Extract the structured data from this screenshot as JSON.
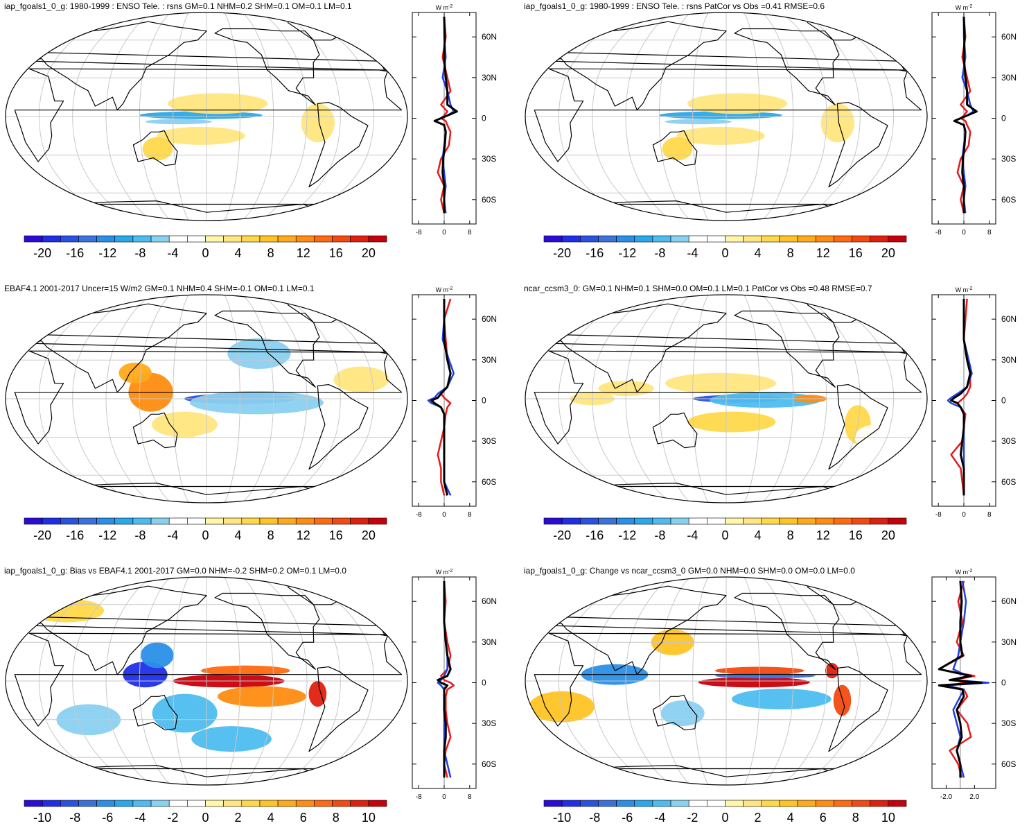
{
  "figure": {
    "zonal_axis": {
      "unit_base": "W m",
      "unit_exp": "-2",
      "lat_ticks": [
        "60N",
        "30N",
        "0",
        "30S",
        "60S"
      ],
      "lat_values": [
        60,
        30,
        0,
        -30,
        -60
      ],
      "series_colors": {
        "model": "#e41a1c",
        "obs": "#1f3fe0",
        "reference": "#000000"
      }
    },
    "colormap": [
      "#2a0bd8",
      "#1f2ee8",
      "#2a52e0",
      "#3c72dc",
      "#2a8fe8",
      "#27a9ec",
      "#4dbdf0",
      "#8ad0f0",
      "#ffffff",
      "#ffffff",
      "#fff6a8",
      "#ffe680",
      "#ffd84a",
      "#ffc424",
      "#ffaa1a",
      "#ff8c10",
      "#ff6a10",
      "#f24a10",
      "#e0200e",
      "#c8000c"
    ],
    "colors": {
      "land": "#000000",
      "grid": "#c8c8c8"
    }
  },
  "chart_data": [
    {
      "type": "heatmap",
      "id": "p1",
      "title": "iap_fgoals1_0_g: 1980-1999 : ENSO Tele. : rsns GM=0.1 NHM=0.2 SHM=0.1 OM=0.1 LM=0.1",
      "colorbar_labels": [
        "-20",
        "-16",
        "-12",
        "-8",
        "-4",
        "0",
        "4",
        "8",
        "12",
        "16",
        "20"
      ],
      "zonal_ticks": [
        "-8",
        "0",
        "8"
      ],
      "zonal_xlim": [
        -10,
        10
      ],
      "blobs": [
        {
          "lon": 175,
          "lat": 1,
          "rlon": 55,
          "rlat": 3,
          "v": -9
        },
        {
          "lon": 155,
          "lat": -4,
          "rlon": 30,
          "rlat": 2,
          "v": -6
        },
        {
          "lon": 190,
          "lat": 10,
          "rlon": 45,
          "rlat": 8,
          "v": 3
        },
        {
          "lon": 175,
          "lat": -15,
          "rlon": 40,
          "rlat": 7,
          "v": 3
        },
        {
          "lon": 135,
          "lat": -25,
          "rlon": 14,
          "rlat": 9,
          "v": 4
        },
        {
          "lon": 280,
          "lat": -5,
          "rlon": 15,
          "rlat": 15,
          "v": 3
        },
        {
          "lon": 295,
          "lat": -35,
          "rlon": 8,
          "rlat": 12,
          "v": -4
        },
        {
          "lon": 40,
          "lat": 0,
          "rlon": 15,
          "rlat": 5,
          "v": -3
        },
        {
          "lon": 255,
          "lat": 20,
          "rlon": 20,
          "rlat": 7,
          "v": -3
        }
      ],
      "zonal": {
        "lat": [
          75,
          60,
          45,
          30,
          20,
          10,
          5,
          2,
          0,
          -2,
          -5,
          -10,
          -20,
          -30,
          -40,
          -50,
          -60,
          -70
        ],
        "model": [
          0,
          0.5,
          -0.5,
          1,
          2,
          -1,
          1,
          0,
          -1,
          0.5,
          1,
          2,
          1.5,
          -1,
          -2,
          0,
          -1,
          0
        ],
        "obs": [
          0,
          0,
          0.5,
          -0.5,
          1,
          2,
          3,
          1,
          -1,
          -3,
          0,
          0.5,
          0,
          -0.5,
          0,
          0.5,
          0,
          0.5
        ],
        "reference": [
          0,
          0.2,
          0,
          0.5,
          1,
          1,
          4,
          1,
          -1,
          -3,
          0,
          0.5,
          0.2,
          -0.3,
          -0.5,
          0,
          0,
          0
        ]
      }
    },
    {
      "type": "heatmap",
      "id": "p2",
      "title": "iap_fgoals1_0_g: 1980-1999 : ENSO Tele. : rsns PatCor vs Obs =0.41 RMSE=0.6",
      "colorbar_labels": [
        "-20",
        "-16",
        "-12",
        "-8",
        "-4",
        "0",
        "4",
        "8",
        "12",
        "16",
        "20"
      ],
      "zonal_ticks": [
        "-8",
        "0",
        "8"
      ],
      "zonal_xlim": [
        -10,
        10
      ],
      "blobs": [
        {
          "lon": 175,
          "lat": 1,
          "rlon": 55,
          "rlat": 3,
          "v": -9
        },
        {
          "lon": 155,
          "lat": -4,
          "rlon": 30,
          "rlat": 2,
          "v": -6
        },
        {
          "lon": 190,
          "lat": 10,
          "rlon": 45,
          "rlat": 8,
          "v": 3
        },
        {
          "lon": 175,
          "lat": -15,
          "rlon": 40,
          "rlat": 7,
          "v": 3
        },
        {
          "lon": 135,
          "lat": -25,
          "rlon": 14,
          "rlat": 9,
          "v": 4
        },
        {
          "lon": 280,
          "lat": -5,
          "rlon": 15,
          "rlat": 15,
          "v": 3
        },
        {
          "lon": 295,
          "lat": -35,
          "rlon": 8,
          "rlat": 12,
          "v": -4
        },
        {
          "lon": 40,
          "lat": 0,
          "rlon": 15,
          "rlat": 5,
          "v": -3
        },
        {
          "lon": 255,
          "lat": 20,
          "rlon": 20,
          "rlat": 7,
          "v": -3
        }
      ],
      "zonal": {
        "lat": [
          75,
          60,
          45,
          30,
          20,
          10,
          5,
          2,
          0,
          -2,
          -5,
          -10,
          -20,
          -30,
          -40,
          -50,
          -60,
          -70
        ],
        "model": [
          0,
          0.5,
          -0.5,
          1,
          2,
          -1,
          1,
          0,
          -1,
          0.5,
          1,
          2,
          1.5,
          -1,
          -2,
          0,
          -1,
          0
        ],
        "obs": [
          0,
          0,
          0.5,
          -0.5,
          1,
          2,
          3,
          1,
          -1,
          -3,
          0,
          0.5,
          0,
          -0.5,
          0,
          0.5,
          0,
          0.5
        ],
        "reference": [
          0,
          0.2,
          0,
          0.5,
          1,
          1,
          4,
          1,
          -1,
          -3,
          0,
          0.5,
          0.2,
          -0.3,
          -0.5,
          0,
          0,
          0
        ]
      }
    },
    {
      "type": "heatmap",
      "id": "p3",
      "title": "EBAF4.1 2001-2017 Uncer=15 W/m2 GM=0.1 NHM=0.4 SHM=-0.1 OM=0.1 LM=0.1",
      "colorbar_labels": [
        "-20",
        "-16",
        "-12",
        "-8",
        "-4",
        "0",
        "4",
        "8",
        "12",
        "16",
        "20"
      ],
      "zonal_ticks": [
        "-8",
        "0",
        "8"
      ],
      "zonal_xlim": [
        -10,
        10
      ],
      "blobs": [
        {
          "lon": 210,
          "lat": 0,
          "rlon": 50,
          "rlat": 4,
          "v": -16
        },
        {
          "lon": 225,
          "lat": -3,
          "rlon": 60,
          "rlat": 9,
          "v": -6
        },
        {
          "lon": 130,
          "lat": 5,
          "rlon": 20,
          "rlat": 15,
          "v": 10
        },
        {
          "lon": 115,
          "lat": 20,
          "rlon": 15,
          "rlat": 8,
          "v": 8
        },
        {
          "lon": 160,
          "lat": -20,
          "rlon": 30,
          "rlat": 10,
          "v": 3
        },
        {
          "lon": 230,
          "lat": 35,
          "rlon": 30,
          "rlat": 12,
          "v": -5
        },
        {
          "lon": 210,
          "lat": -35,
          "rlon": 50,
          "rlat": 10,
          "v": -4
        },
        {
          "lon": 30,
          "lat": 45,
          "rlon": 60,
          "rlat": 12,
          "v": -3
        },
        {
          "lon": 320,
          "lat": 15,
          "rlon": 25,
          "rlat": 10,
          "v": 3
        },
        {
          "lon": 90,
          "lat": -40,
          "rlon": 40,
          "rlat": 8,
          "v": -3
        }
      ],
      "zonal": {
        "lat": [
          75,
          60,
          45,
          30,
          20,
          10,
          5,
          2,
          0,
          -2,
          -5,
          -10,
          -20,
          -30,
          -40,
          -50,
          -60,
          -70
        ],
        "model": [
          2,
          0,
          0.5,
          1,
          2,
          1,
          -1,
          0,
          1,
          2,
          1,
          0.5,
          0,
          -1,
          -2,
          -1,
          -1,
          0
        ],
        "obs": [
          0,
          0,
          -0.5,
          1.5,
          3,
          1,
          -2,
          -3,
          -5,
          -4,
          -1,
          0,
          0,
          0,
          0,
          0,
          0,
          2
        ],
        "reference": [
          0,
          0,
          0,
          1,
          2,
          1,
          -1,
          -2,
          -4,
          -3,
          -1,
          0,
          0,
          0,
          0,
          0,
          0,
          1
        ]
      }
    },
    {
      "type": "heatmap",
      "id": "p4",
      "title": "ncar_ccsm3_0: GM=0.1 NHM=0.1 SHM=0.0 OM=0.1 LM=0.1 PatCor vs Obs =0.48 RMSE=0.7",
      "colorbar_labels": [
        "-20",
        "-16",
        "-12",
        "-8",
        "-4",
        "0",
        "4",
        "8",
        "12",
        "16",
        "20"
      ],
      "zonal_ticks": [
        "-8",
        "0",
        "8"
      ],
      "zonal_xlim": [
        -10,
        10
      ],
      "blobs": [
        {
          "lon": 190,
          "lat": 0,
          "rlon": 40,
          "rlat": 3,
          "v": -16
        },
        {
          "lon": 215,
          "lat": -1,
          "rlon": 50,
          "rlat": 6,
          "v": -7
        },
        {
          "lon": 255,
          "lat": 0,
          "rlon": 15,
          "rlat": 3,
          "v": 10
        },
        {
          "lon": 175,
          "lat": 12,
          "rlon": 50,
          "rlat": 8,
          "v": 3
        },
        {
          "lon": 185,
          "lat": -18,
          "rlon": 40,
          "rlat": 8,
          "v": 4
        },
        {
          "lon": 90,
          "lat": 8,
          "rlon": 25,
          "rlat": 6,
          "v": 3
        },
        {
          "lon": 300,
          "lat": -20,
          "rlon": 12,
          "rlat": 15,
          "v": 4
        },
        {
          "lon": 60,
          "lat": 0,
          "rlon": 20,
          "rlat": 5,
          "v": 3
        },
        {
          "lon": 320,
          "lat": -30,
          "rlon": 20,
          "rlat": 10,
          "v": -3
        }
      ],
      "zonal": {
        "lat": [
          75,
          60,
          45,
          30,
          20,
          10,
          5,
          2,
          0,
          -2,
          -5,
          -10,
          -20,
          -30,
          -40,
          -50,
          -60,
          -70
        ],
        "model": [
          1,
          0.5,
          0,
          1,
          2,
          2,
          1,
          0,
          -1,
          -2,
          -1,
          0.5,
          0,
          -0.5,
          -4,
          -1,
          -0.5,
          0
        ],
        "obs": [
          0,
          0,
          0,
          1.5,
          2.5,
          1,
          -2,
          -4,
          -5,
          -4,
          -1,
          0,
          0,
          0,
          0,
          0,
          0,
          0
        ],
        "reference": [
          0,
          0,
          0,
          1,
          2,
          1,
          -1,
          -3,
          -4,
          -2,
          -1,
          0,
          0,
          -0.5,
          -1,
          0,
          0,
          0
        ]
      }
    },
    {
      "type": "heatmap",
      "id": "p5",
      "title": "iap_fgoals1_0_g: Bias vs EBAF4.1 2001-2017 GM=0.0 NHM=-0.2 SHM=0.2 OM=0.1 LM=0.0",
      "colorbar_labels": [
        "-10",
        "-8",
        "-6",
        "-4",
        "-2",
        "0",
        "2",
        "4",
        "6",
        "8",
        "10"
      ],
      "zonal_ticks": [
        "-8",
        "0",
        "8"
      ],
      "zonal_xlim": [
        -10,
        10
      ],
      "blobs": [
        {
          "lon": 200,
          "lat": 0,
          "rlon": 50,
          "rlat": 5,
          "v": 9
        },
        {
          "lon": 215,
          "lat": 8,
          "rlon": 40,
          "rlat": 4,
          "v": 6
        },
        {
          "lon": 230,
          "lat": -12,
          "rlon": 40,
          "rlat": 8,
          "v": 5
        },
        {
          "lon": 125,
          "lat": 5,
          "rlon": 20,
          "rlat": 10,
          "v": -9
        },
        {
          "lon": 135,
          "lat": 20,
          "rlon": 15,
          "rlat": 10,
          "v": -6
        },
        {
          "lon": 160,
          "lat": -25,
          "rlon": 30,
          "rlat": 15,
          "v": -4
        },
        {
          "lon": 205,
          "lat": -45,
          "rlon": 40,
          "rlat": 10,
          "v": -4
        },
        {
          "lon": 280,
          "lat": -10,
          "rlon": 8,
          "rlat": 10,
          "v": 8
        },
        {
          "lon": 30,
          "lat": 55,
          "rlon": 40,
          "rlat": 10,
          "v": 2
        },
        {
          "lon": 70,
          "lat": -30,
          "rlon": 30,
          "rlat": 12,
          "v": -3
        }
      ],
      "zonal": {
        "lat": [
          75,
          60,
          45,
          30,
          20,
          10,
          5,
          2,
          0,
          -2,
          -5,
          -10,
          -20,
          -30,
          -40,
          -50,
          -60,
          -70
        ],
        "model": [
          0,
          0.5,
          0,
          1,
          2,
          1,
          -1,
          0,
          2,
          3,
          1,
          0.5,
          0.5,
          1,
          2,
          0.5,
          0,
          1
        ],
        "obs": [
          0,
          0,
          0,
          0.5,
          1,
          1,
          0,
          -1,
          -2,
          -1,
          0,
          0,
          0,
          0,
          0,
          0,
          1,
          2
        ],
        "reference": [
          0,
          0,
          0,
          0.5,
          1,
          2,
          1,
          -2,
          -1,
          1,
          0,
          0,
          0,
          0.5,
          0.5,
          0,
          0,
          0
        ]
      }
    },
    {
      "type": "heatmap",
      "id": "p6",
      "title": "iap_fgoals1_0_g: Change vs ncar_ccsm3_0 GM=0.0 NHM=0.0 SHM=0.0 OM=0.0 LM=0.0",
      "colorbar_labels": [
        "-10",
        "-8",
        "-6",
        "-4",
        "-2",
        "0",
        "2",
        "4",
        "6",
        "8",
        "10"
      ],
      "zonal_ticks": [
        "-2.0",
        "2.0"
      ],
      "zonal_xlim": [
        -4,
        5
      ],
      "blobs": [
        {
          "lon": 205,
          "lat": -1,
          "rlon": 50,
          "rlat": 4,
          "v": 9
        },
        {
          "lon": 210,
          "lat": 8,
          "rlon": 40,
          "rlat": 3,
          "v": 7
        },
        {
          "lon": 215,
          "lat": 4,
          "rlon": 45,
          "rlat": 2,
          "v": -7
        },
        {
          "lon": 230,
          "lat": -14,
          "rlon": 45,
          "rlat": 8,
          "v": -4
        },
        {
          "lon": 80,
          "lat": 5,
          "rlon": 30,
          "rlat": 8,
          "v": -6
        },
        {
          "lon": 285,
          "lat": -15,
          "rlon": 8,
          "rlat": 12,
          "v": 7
        },
        {
          "lon": 275,
          "lat": 8,
          "rlon": 6,
          "rlat": 6,
          "v": 8
        },
        {
          "lon": 130,
          "lat": 30,
          "rlon": 20,
          "rlat": 10,
          "v": 3
        },
        {
          "lon": 140,
          "lat": -25,
          "rlon": 20,
          "rlat": 10,
          "v": -3
        },
        {
          "lon": 30,
          "lat": -20,
          "rlon": 30,
          "rlat": 12,
          "v": 3
        }
      ],
      "zonal": {
        "lat": [
          75,
          60,
          45,
          30,
          20,
          10,
          5,
          2,
          0,
          -2,
          -5,
          -10,
          -20,
          -30,
          -40,
          -50,
          -60,
          -70
        ],
        "model": [
          0.5,
          -0.3,
          0.3,
          -0.5,
          0.5,
          -3,
          2,
          -1,
          1,
          -2,
          0.5,
          1,
          -0.5,
          1,
          1.5,
          -1.5,
          -0.3,
          0.2
        ],
        "obs": [
          0.3,
          0.8,
          0.5,
          0,
          -0.3,
          -1,
          1,
          -1,
          4,
          -2,
          0.5,
          0,
          -1,
          -0.5,
          0,
          -0.5,
          0,
          0.5
        ],
        "reference": [
          0,
          0.2,
          0,
          0,
          0.3,
          -3,
          1.5,
          -1.5,
          3,
          -3,
          0.3,
          0.5,
          -0.5,
          0,
          0.2,
          -0.5,
          0,
          0
        ]
      }
    }
  ]
}
